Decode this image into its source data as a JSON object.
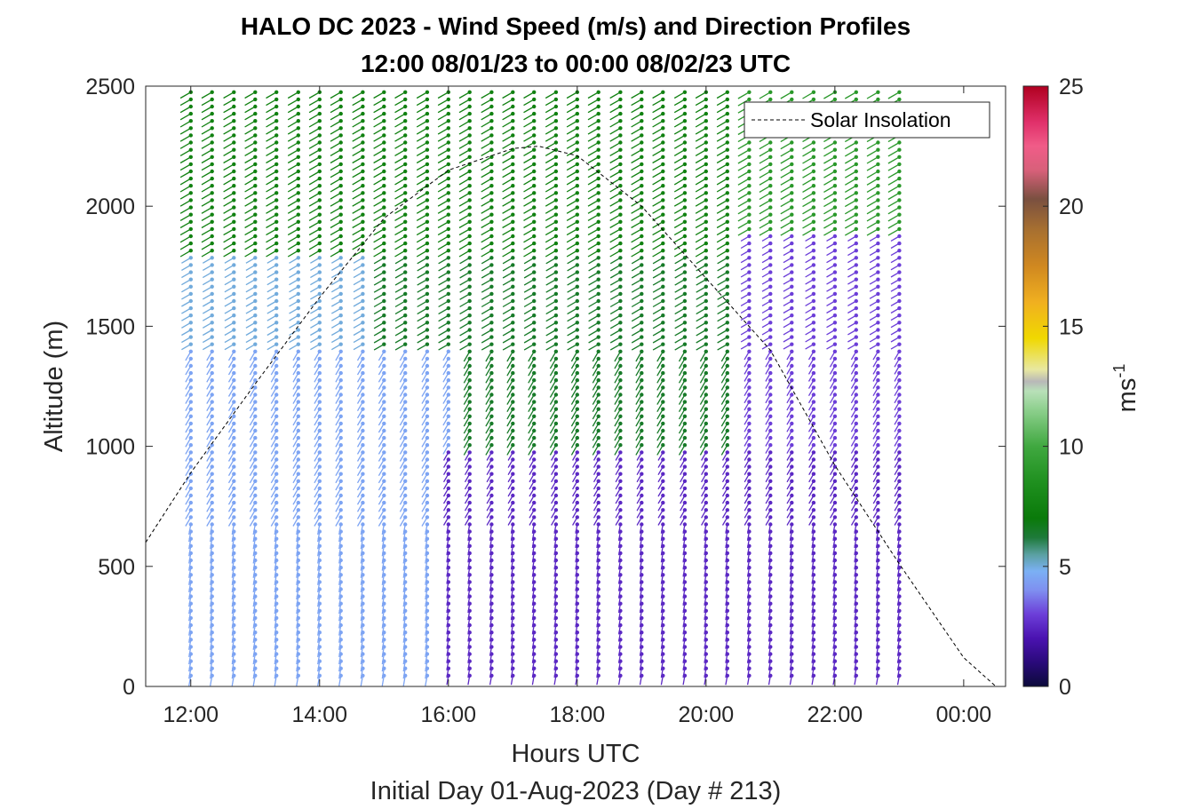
{
  "chart_data": {
    "type": "wind-barb-profile",
    "title": "HALO DC 2023 - Wind Speed (m/s) and Direction Profiles",
    "subtitle": "12:00 08/01/23 to 00:00 08/02/23  UTC",
    "xlabel": "Hours UTC",
    "x_sublabel": "Initial Day 01-Aug-2023 (Day # 213)",
    "ylabel": "Altitude (m)",
    "xlim": [
      11.3,
      24.65
    ],
    "ylim": [
      0,
      2500
    ],
    "x_ticks": [
      {
        "value": 12,
        "label": "12:00"
      },
      {
        "value": 14,
        "label": "14:00"
      },
      {
        "value": 16,
        "label": "16:00"
      },
      {
        "value": 18,
        "label": "18:00"
      },
      {
        "value": 20,
        "label": "20:00"
      },
      {
        "value": 22,
        "label": "22:00"
      },
      {
        "value": 24,
        "label": "00:00"
      }
    ],
    "y_ticks": [
      {
        "value": 0,
        "label": "0"
      },
      {
        "value": 500,
        "label": "500"
      },
      {
        "value": 1000,
        "label": "1000"
      },
      {
        "value": 1500,
        "label": "1500"
      },
      {
        "value": 2000,
        "label": "2000"
      },
      {
        "value": 2500,
        "label": "2500"
      }
    ],
    "colorbar": {
      "label": "ms",
      "label_superscript": "-1",
      "range": [
        0,
        25
      ],
      "ticks": [
        {
          "value": 0,
          "label": "0"
        },
        {
          "value": 5,
          "label": "5"
        },
        {
          "value": 10,
          "label": "10"
        },
        {
          "value": 15,
          "label": "15"
        },
        {
          "value": 20,
          "label": "20"
        },
        {
          "value": 25,
          "label": "25"
        }
      ],
      "stops": [
        {
          "v": 0,
          "color": "#0b0a3a"
        },
        {
          "v": 1,
          "color": "#2a0a7a"
        },
        {
          "v": 2,
          "color": "#4a12b0"
        },
        {
          "v": 3,
          "color": "#6c3ed8"
        },
        {
          "v": 4,
          "color": "#7f8ff0"
        },
        {
          "v": 4.8,
          "color": "#7bb0f4"
        },
        {
          "v": 5.5,
          "color": "#5aa0a0"
        },
        {
          "v": 6.2,
          "color": "#1e7a3a"
        },
        {
          "v": 7,
          "color": "#0a7a0a"
        },
        {
          "v": 8.5,
          "color": "#1f901f"
        },
        {
          "v": 10,
          "color": "#40a840"
        },
        {
          "v": 11.5,
          "color": "#8ccf8c"
        },
        {
          "v": 12.3,
          "color": "#b8e0b8"
        },
        {
          "v": 12.7,
          "color": "#b8b8b8"
        },
        {
          "v": 13.2,
          "color": "#e8e8a0"
        },
        {
          "v": 14.5,
          "color": "#f0d800"
        },
        {
          "v": 16,
          "color": "#f0b020"
        },
        {
          "v": 17.5,
          "color": "#d08820"
        },
        {
          "v": 19,
          "color": "#a87030"
        },
        {
          "v": 20.3,
          "color": "#7a5040"
        },
        {
          "v": 21.5,
          "color": "#d8607a"
        },
        {
          "v": 22.5,
          "color": "#f05c88"
        },
        {
          "v": 23.5,
          "color": "#e0306a"
        },
        {
          "v": 25,
          "color": "#b00020"
        }
      ]
    },
    "legend": {
      "entries": [
        "Solar Insolation"
      ],
      "placement": "top-right"
    },
    "solar_insolation_curve": {
      "style": "dashed",
      "color": "#000000",
      "points": [
        [
          11.3,
          600
        ],
        [
          12,
          890
        ],
        [
          13,
          1260
        ],
        [
          14,
          1620
        ],
        [
          15,
          1950
        ],
        [
          16,
          2150
        ],
        [
          17,
          2240
        ],
        [
          17.4,
          2250
        ],
        [
          18,
          2210
        ],
        [
          19,
          2000
        ],
        [
          20,
          1700
        ],
        [
          21,
          1400
        ],
        [
          22,
          920
        ],
        [
          23,
          510
        ],
        [
          24,
          120
        ],
        [
          24.5,
          0
        ]
      ]
    },
    "profile_times": [
      12.0,
      12.33,
      12.67,
      13.0,
      13.33,
      13.67,
      14.0,
      14.33,
      14.67,
      15.0,
      15.33,
      15.67,
      16.0,
      16.33,
      16.67,
      17.0,
      17.33,
      17.67,
      18.0,
      18.33,
      18.67,
      19.0,
      19.33,
      19.67,
      20.0,
      20.33,
      20.67,
      21.0,
      21.33,
      21.67,
      22.0,
      22.33,
      22.67,
      23.0
    ],
    "altitude_step_m": 30,
    "wind_speed_regions_ms": [
      {
        "time_range": [
          12.0,
          20.4
        ],
        "alt_range": [
          1800,
          2500
        ],
        "speed": 7.5
      },
      {
        "time_range": [
          20.4,
          23.0
        ],
        "alt_range": [
          1900,
          2500
        ],
        "speed": 9
      },
      {
        "time_range": [
          12.0,
          15.0
        ],
        "alt_range": [
          1400,
          1800
        ],
        "speed": 5
      },
      {
        "time_range": [
          15.0,
          20.5
        ],
        "alt_range": [
          1000,
          1800
        ],
        "speed": 6.5
      },
      {
        "time_range": [
          12.0,
          16.0
        ],
        "alt_range": [
          0,
          1400
        ],
        "speed": 4.5
      },
      {
        "time_range": [
          16.0,
          23.0
        ],
        "alt_range": [
          0,
          1000
        ],
        "speed": 2.5
      },
      {
        "time_range": [
          20.5,
          23.0
        ],
        "alt_range": [
          1000,
          1900
        ],
        "speed": 3
      }
    ],
    "wind_direction_note": "barbs point generally from the west-northwest aloft and from the west-southwest near the surface"
  }
}
